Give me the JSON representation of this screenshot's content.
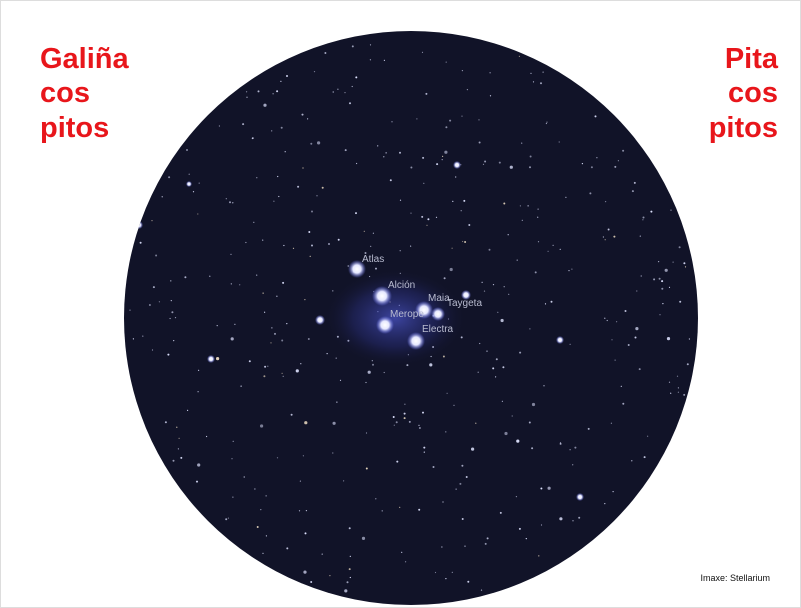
{
  "headline_left": {
    "lines": [
      "Galiña",
      "cos",
      "pitos"
    ]
  },
  "headline_right": {
    "lines": [
      "Pita",
      "cos",
      "pitos"
    ]
  },
  "star_labels": [
    "Atlas",
    "Alción",
    "Maia",
    "Taygeta",
    "Merope",
    "Electra"
  ],
  "credit": "Imaxe: Stellarium"
}
